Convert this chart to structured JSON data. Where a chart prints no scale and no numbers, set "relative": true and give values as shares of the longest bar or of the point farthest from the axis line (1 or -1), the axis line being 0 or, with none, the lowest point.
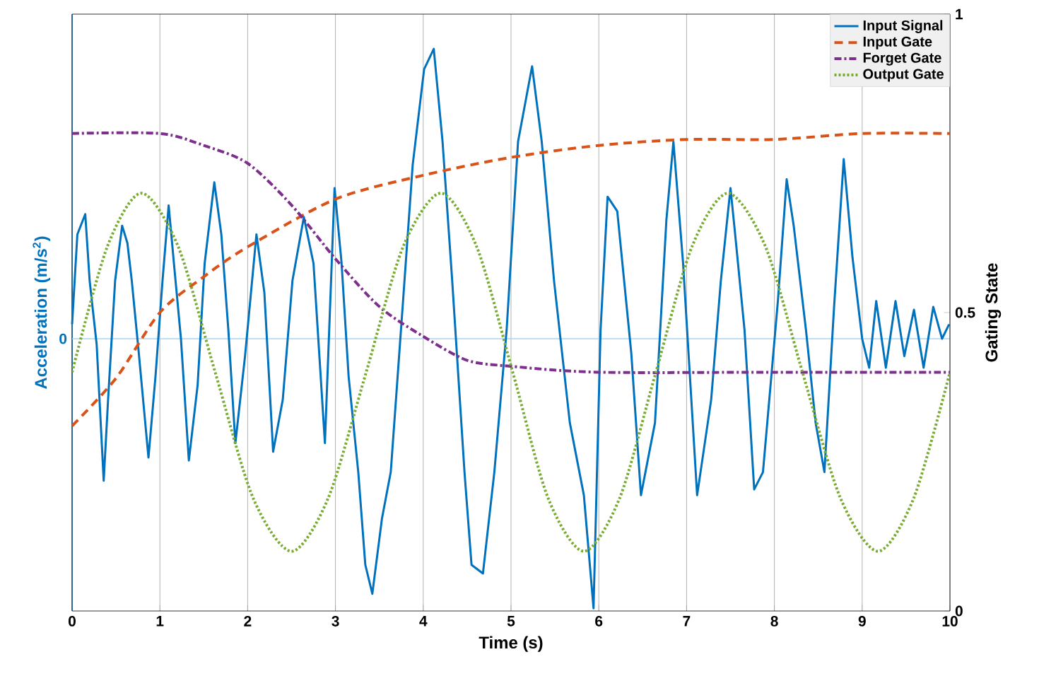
{
  "chart_data": {
    "type": "line",
    "relative": true,
    "xlabel": "Time (s)",
    "ylabel": "Acceleration (m/s$^{2}$)",
    "y2label": "Gating State",
    "xlim": [
      0,
      10
    ],
    "xticks": [
      0,
      1,
      2,
      3,
      4,
      5,
      6,
      7,
      8,
      9,
      10
    ],
    "annotations": [
      "0"
    ],
    "y2lim": [
      0,
      1
    ],
    "y2ticks": [
      0,
      0.5,
      1
    ],
    "grid": "x",
    "legend": "top right",
    "ref_lines": [
      {
        "axis": "y",
        "value": 0,
        "color": "#a8d4f0"
      }
    ],
    "series": [
      {
        "name": "Input Signal",
        "color": "#0072bd",
        "line_style": "solid",
        "x": [
          0,
          0.06,
          0.15,
          0.2,
          0.28,
          0.36,
          0.41,
          0.49,
          0.57,
          0.63,
          0.68,
          0.76,
          0.87,
          0.95,
          1.03,
          1.1,
          1.16,
          1.24,
          1.33,
          1.43,
          1.51,
          1.62,
          1.7,
          1.78,
          1.86,
          1.97,
          2.1,
          2.19,
          2.29,
          2.4,
          2.51,
          2.64,
          2.75,
          2.88,
          2.99,
          3.07,
          3.15,
          3.26,
          3.34,
          3.42,
          3.53,
          3.63,
          3.77,
          3.88,
          4.01,
          4.12,
          4.22,
          4.33,
          4.47,
          4.55,
          4.68,
          4.81,
          4.95,
          5.08,
          5.24,
          5.35,
          5.49,
          5.67,
          5.83,
          5.94,
          6.02,
          6.1,
          6.21,
          6.37,
          6.48,
          6.64,
          6.77,
          6.85,
          6.96,
          7.12,
          7.28,
          7.39,
          7.5,
          7.55,
          7.66,
          7.77,
          7.87,
          8.04,
          8.14,
          8.22,
          8.36,
          8.47,
          8.57,
          8.68,
          8.79,
          8.89,
          9.0,
          9.08,
          9.16,
          9.27,
          9.38,
          9.48,
          9.59,
          9.7,
          9.81,
          9.91,
          9.99
        ],
        "values": [
          0.05,
          0.36,
          0.43,
          0.2,
          -0.02,
          -0.49,
          -0.21,
          0.2,
          0.39,
          0.33,
          0.2,
          -0.05,
          -0.41,
          -0.13,
          0.2,
          0.46,
          0.26,
          0.0,
          -0.42,
          -0.16,
          0.26,
          0.54,
          0.36,
          0.03,
          -0.36,
          -0.06,
          0.36,
          0.16,
          -0.39,
          -0.21,
          0.2,
          0.42,
          0.26,
          -0.36,
          0.52,
          0.26,
          -0.13,
          -0.46,
          -0.78,
          -0.88,
          -0.62,
          -0.46,
          0.13,
          0.6,
          0.93,
          1.0,
          0.68,
          0.2,
          -0.46,
          -0.78,
          -0.81,
          -0.46,
          0.03,
          0.68,
          0.94,
          0.68,
          0.2,
          -0.29,
          -0.54,
          -0.93,
          0.03,
          0.49,
          0.44,
          -0.05,
          -0.54,
          -0.29,
          0.41,
          0.68,
          0.26,
          -0.54,
          -0.21,
          0.2,
          0.52,
          0.37,
          0.03,
          -0.52,
          -0.46,
          0.13,
          0.55,
          0.39,
          0.03,
          -0.29,
          -0.46,
          0.11,
          0.62,
          0.28,
          0.0,
          -0.1,
          0.13,
          -0.1,
          0.13,
          -0.06,
          0.1,
          -0.1,
          0.11,
          0.0,
          0.05
        ]
      },
      {
        "name": "Input Gate",
        "color": "#d95319",
        "line_style": "dashed",
        "axis": "y2",
        "x": [
          0,
          0.5,
          1,
          1.5,
          2,
          3,
          4,
          5,
          6,
          7,
          8,
          9,
          10
        ],
        "values": [
          0.31,
          0.39,
          0.5,
          0.56,
          0.61,
          0.69,
          0.73,
          0.76,
          0.78,
          0.79,
          0.79,
          0.8,
          0.8
        ]
      },
      {
        "name": "Forget Gate",
        "color": "#7e2f8e",
        "line_style": "dashdot",
        "axis": "y2",
        "x": [
          0,
          1,
          1.5,
          2,
          2.5,
          3,
          3.5,
          4,
          4.5,
          5,
          6,
          8,
          10
        ],
        "values": [
          0.8,
          0.8,
          0.78,
          0.75,
          0.68,
          0.59,
          0.51,
          0.46,
          0.42,
          0.41,
          0.4,
          0.4,
          0.4
        ]
      },
      {
        "name": "Output Gate",
        "color": "#77ac30",
        "line_style": "dotted",
        "axis": "y2",
        "x": [
          0,
          0.4,
          0.79,
          1.21,
          1.63,
          2.06,
          2.5,
          2.92,
          3.35,
          3.77,
          4.2,
          4.61,
          5.02,
          5.42,
          5.83,
          6.24,
          6.65,
          7.06,
          7.47,
          7.9,
          8.32,
          8.75,
          9.18,
          9.59,
          10
        ],
        "values": [
          0.4,
          0.61,
          0.7,
          0.61,
          0.4,
          0.19,
          0.1,
          0.19,
          0.4,
          0.61,
          0.7,
          0.61,
          0.4,
          0.19,
          0.1,
          0.19,
          0.4,
          0.61,
          0.7,
          0.61,
          0.4,
          0.19,
          0.1,
          0.19,
          0.4
        ]
      }
    ]
  }
}
